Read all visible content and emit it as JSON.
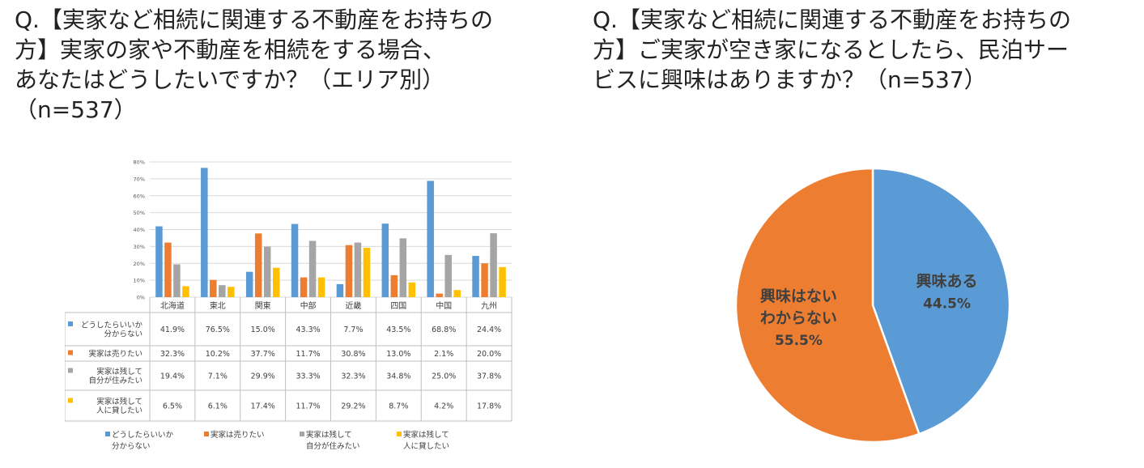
{
  "left": {
    "title": "Q.【実家など相続に関連する不動産をお持ちの\n方】実家の家や不動産を相続をする場合、\nあなたはどうしたいですか？（エリア別）\n（n=537）"
  },
  "right": {
    "title": "Q.【実家など相続に関連する不動産をお持ちの\n方】ご実家が空き家になるとしたら、民泊サー\nビスに興味はありますか？（n=537）"
  },
  "chart_data": [
    {
      "type": "bar",
      "categories": [
        "北海道",
        "東北",
        "関東",
        "中部",
        "近畿",
        "四国",
        "中国",
        "九州"
      ],
      "ylim": [
        0,
        80
      ],
      "yticks": [
        "0%",
        "10%",
        "20%",
        "30%",
        "40%",
        "50%",
        "60%",
        "70%",
        "80%"
      ],
      "grid": true,
      "legend_position": "bottom",
      "series": [
        {
          "name": "どうしたらいいか分からない",
          "legend_lines": [
            "どうしたらいいか",
            "分からない"
          ],
          "table_lines": [
            "どうしたらいいか",
            "分からない"
          ],
          "color": "#5B9BD5",
          "values": [
            41.9,
            76.5,
            15.0,
            43.3,
            7.7,
            43.5,
            68.8,
            24.4
          ],
          "labels": [
            "41.9%",
            "76.5%",
            "15.0%",
            "43.3%",
            "7.7%",
            "43.5%",
            "68.8%",
            "24.4%"
          ]
        },
        {
          "name": "実家は売りたい",
          "legend_lines": [
            "実家は売りたい"
          ],
          "table_lines": [
            "実家は売りたい"
          ],
          "color": "#ED7D31",
          "values": [
            32.3,
            10.2,
            37.7,
            11.7,
            30.8,
            13.0,
            2.1,
            20.0
          ],
          "labels": [
            "32.3%",
            "10.2%",
            "37.7%",
            "11.7%",
            "30.8%",
            "13.0%",
            "2.1%",
            "20.0%"
          ]
        },
        {
          "name": "実家は残して自分が住みたい",
          "legend_lines": [
            "実家は残して",
            "自分が住みたい"
          ],
          "table_lines": [
            "実家は残して",
            "自分が住みたい"
          ],
          "color": "#A5A5A5",
          "values": [
            19.4,
            7.1,
            29.9,
            33.3,
            32.3,
            34.8,
            25.0,
            37.8
          ],
          "labels": [
            "19.4%",
            "7.1%",
            "29.9%",
            "33.3%",
            "32.3%",
            "34.8%",
            "25.0%",
            "37.8%"
          ]
        },
        {
          "name": "実家は残して人に貸したい",
          "legend_lines": [
            "実家は残して",
            "人に貸したい"
          ],
          "table_lines": [
            "実家は残して",
            "人に貸したい"
          ],
          "color": "#FFC000",
          "values": [
            6.5,
            6.1,
            17.4,
            11.7,
            29.2,
            8.7,
            4.2,
            17.8
          ],
          "labels": [
            "6.5%",
            "6.1%",
            "17.4%",
            "11.7%",
            "29.2%",
            "8.7%",
            "4.2%",
            "17.8%"
          ]
        }
      ]
    },
    {
      "type": "pie",
      "slices": [
        {
          "label_lines": [
            "興味ある"
          ],
          "value": 44.5,
          "value_label": "44.5%",
          "color": "#5B9BD5"
        },
        {
          "label_lines": [
            "興味はない",
            "わからない"
          ],
          "value": 55.5,
          "value_label": "55.5%",
          "color": "#ED7D31"
        }
      ]
    }
  ]
}
